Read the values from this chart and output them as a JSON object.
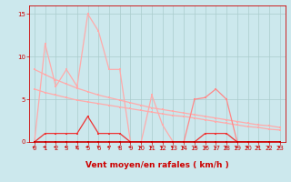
{
  "background_color": "#cce8ed",
  "grid_color": "#aacccc",
  "x_ticks": [
    0,
    1,
    2,
    3,
    4,
    5,
    6,
    7,
    8,
    9,
    10,
    11,
    12,
    13,
    14,
    15,
    16,
    17,
    18,
    19,
    20,
    21,
    22,
    23
  ],
  "xlabel": "Vent moyen/en rafales ( km/h )",
  "ylim": [
    0,
    16
  ],
  "yticks": [
    0,
    5,
    10,
    15
  ],
  "xlim": [
    -0.5,
    23.5
  ],
  "tick_label_fontsize": 5.0,
  "xlabel_fontsize": 6.5,
  "line_peaked": {
    "x": [
      0,
      1,
      2,
      3,
      4,
      5,
      6,
      7,
      8,
      9,
      10,
      11,
      12,
      13
    ],
    "y": [
      0,
      11.5,
      6.5,
      8.5,
      6.5,
      15,
      13,
      8.5,
      8.5,
      0,
      0,
      5.5,
      2,
      0
    ],
    "color": "#ffaaaa",
    "lw": 0.9,
    "ms": 2.0
  },
  "line_diag_upper": {
    "x": [
      0,
      1,
      2,
      3,
      4,
      5,
      6,
      7,
      8,
      9,
      10,
      11,
      12,
      13,
      14,
      15,
      16,
      17,
      18,
      19,
      20,
      21,
      22,
      23
    ],
    "y": [
      8.5,
      7.9,
      7.3,
      6.8,
      6.3,
      5.9,
      5.5,
      5.2,
      4.9,
      4.6,
      4.3,
      4.0,
      3.8,
      3.6,
      3.4,
      3.2,
      3.0,
      2.8,
      2.6,
      2.4,
      2.2,
      2.0,
      1.9,
      1.7
    ],
    "color": "#ffaaaa",
    "lw": 0.9,
    "ms": 1.5
  },
  "line_diag_lower": {
    "x": [
      0,
      1,
      2,
      3,
      4,
      5,
      6,
      7,
      8,
      9,
      10,
      11,
      12,
      13,
      14,
      15,
      16,
      17,
      18,
      19,
      20,
      21,
      22,
      23
    ],
    "y": [
      6.2,
      5.8,
      5.5,
      5.2,
      4.9,
      4.7,
      4.5,
      4.3,
      4.1,
      3.9,
      3.7,
      3.5,
      3.3,
      3.1,
      3.0,
      2.8,
      2.6,
      2.4,
      2.2,
      2.0,
      1.8,
      1.7,
      1.5,
      1.4
    ],
    "color": "#ffaaaa",
    "lw": 0.9,
    "ms": 1.5
  },
  "line_right_hump": {
    "x": [
      14,
      15,
      16,
      17,
      18,
      19,
      20,
      21,
      22,
      23
    ],
    "y": [
      0,
      5.0,
      5.2,
      6.2,
      5.0,
      0,
      0,
      0,
      0,
      0
    ],
    "color": "#ff8888",
    "lw": 0.9,
    "ms": 2.0
  },
  "line_small_peak": {
    "x": [
      0,
      1,
      2,
      3,
      4,
      5,
      6,
      7,
      8,
      9,
      10,
      11,
      12,
      13,
      14,
      15,
      16,
      17,
      18,
      19,
      20,
      21,
      22,
      23
    ],
    "y": [
      0,
      1,
      1,
      1,
      1,
      3,
      1,
      1,
      1,
      0,
      0,
      0,
      0,
      0,
      0,
      0,
      1,
      1,
      1,
      0,
      0,
      0,
      0,
      0
    ],
    "color": "#ee3333",
    "lw": 0.9,
    "ms": 1.8
  },
  "line_base": {
    "x": [
      0,
      1,
      2,
      3,
      4,
      5,
      6,
      7,
      8,
      9,
      10,
      11,
      12,
      13,
      14,
      15,
      16,
      17,
      18,
      19,
      20,
      21,
      22,
      23
    ],
    "y": [
      0,
      0,
      0,
      0,
      0,
      0,
      0,
      0,
      0,
      0,
      0,
      0,
      0,
      0,
      0,
      0,
      0,
      0,
      0,
      0,
      0,
      0,
      0,
      0
    ],
    "color": "#cc0000",
    "lw": 1.2,
    "ms": 1.8
  },
  "arrows_x": [
    0,
    1,
    2,
    3,
    4,
    5,
    6,
    7,
    8,
    9,
    10,
    11,
    12,
    13,
    14,
    15,
    16,
    17,
    18,
    19,
    20,
    21,
    22,
    23
  ],
  "arrow_angles": [
    270,
    270,
    270,
    270,
    300,
    270,
    315,
    270,
    270,
    270,
    270,
    270,
    270,
    270,
    270,
    120,
    90,
    225,
    315,
    270,
    270,
    270,
    270,
    270
  ]
}
